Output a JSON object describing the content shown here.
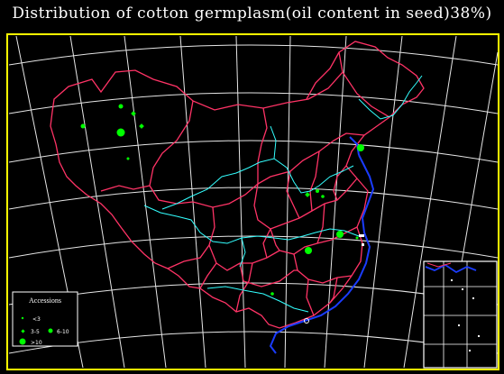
{
  "title": "Distribution of cotton germplasm(oil content in seed)38%)",
  "legend": {
    "title": "Accessions",
    "items": [
      {
        "label": "<3",
        "symbol": "tiny-dot"
      },
      {
        "label": "3-5",
        "symbol": "small-diamond"
      },
      {
        "label": "6-10",
        "symbol": "medium-dot"
      },
      {
        "label": ">10",
        "symbol": "large-octagon"
      }
    ]
  },
  "colors": {
    "background": "#000000",
    "frame": "#ffff00",
    "graticule": "#ffffff",
    "province_borders": "#ff3366",
    "rivers": "#33ffff",
    "coast_sea": "#1a3cff",
    "markers": "#00ff00"
  },
  "layers": [
    "graticule",
    "province-borders",
    "rivers",
    "coastline",
    "accession-markers",
    "south-china-sea-inset"
  ]
}
